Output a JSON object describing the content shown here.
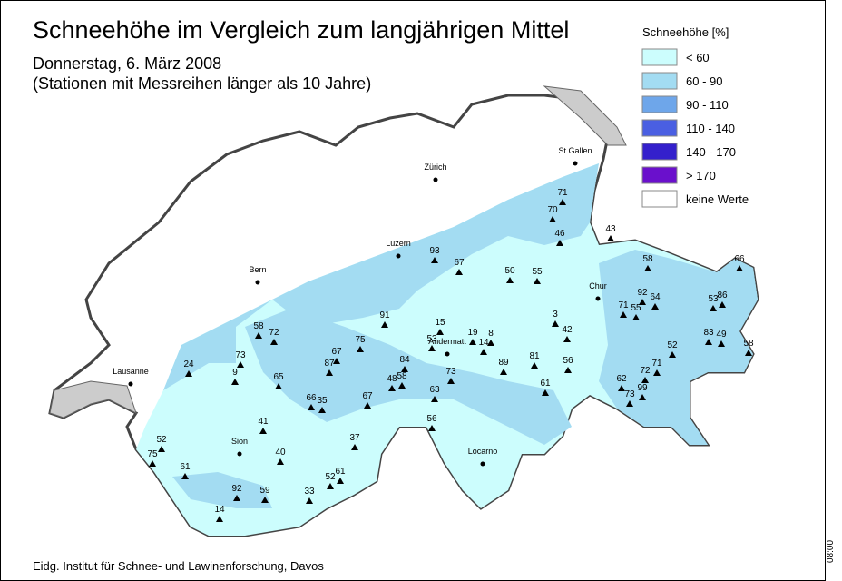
{
  "title": "Schneehöhe im Vergleich zum langjährigen Mittel",
  "subtitle": [
    "Donnerstag, 6. März 2008",
    "(Stationen mit Messreihen länger als 10 Jahre)"
  ],
  "legend": {
    "title": "Schneehöhe [%]",
    "items": [
      {
        "label": "< 60",
        "color": "#ccfdfd"
      },
      {
        "label": "60 - 90",
        "color": "#a3dcf2"
      },
      {
        "label": "90 - 110",
        "color": "#6ea6ea"
      },
      {
        "label": "110 - 140",
        "color": "#4a5fe2"
      },
      {
        "label": "140 - 170",
        "color": "#3420cc"
      },
      {
        "label": "> 170",
        "color": "#6a10cc"
      },
      {
        "label": "keine Werte",
        "color": "#ffffff"
      }
    ]
  },
  "cities": [
    "St.Gallen",
    "Zürich",
    "Luzern",
    "Bern",
    "Chur",
    "Andermatt",
    "Lausanne",
    "Sion",
    "Locarno"
  ],
  "stations": [
    "71",
    "70",
    "46",
    "43",
    "93",
    "67",
    "50",
    "55",
    "58",
    "66",
    "92",
    "64",
    "53",
    "86",
    "71",
    "55",
    "58",
    "72",
    "91",
    "15",
    "3",
    "19",
    "8",
    "53",
    "14",
    "42",
    "83",
    "49",
    "52",
    "58",
    "67",
    "75",
    "87",
    "73",
    "24",
    "9",
    "84",
    "89",
    "81",
    "56",
    "71",
    "72",
    "65",
    "48",
    "58",
    "73",
    "62",
    "61",
    "66",
    "35",
    "67",
    "63",
    "73",
    "99",
    "56",
    "41",
    "52",
    "37",
    "75",
    "40",
    "61",
    "61",
    "52",
    "92",
    "59",
    "33",
    "14"
  ],
  "footer": "Eidg. Institut für Schnee- und Lawinenforschung, Davos",
  "time": "08:00"
}
